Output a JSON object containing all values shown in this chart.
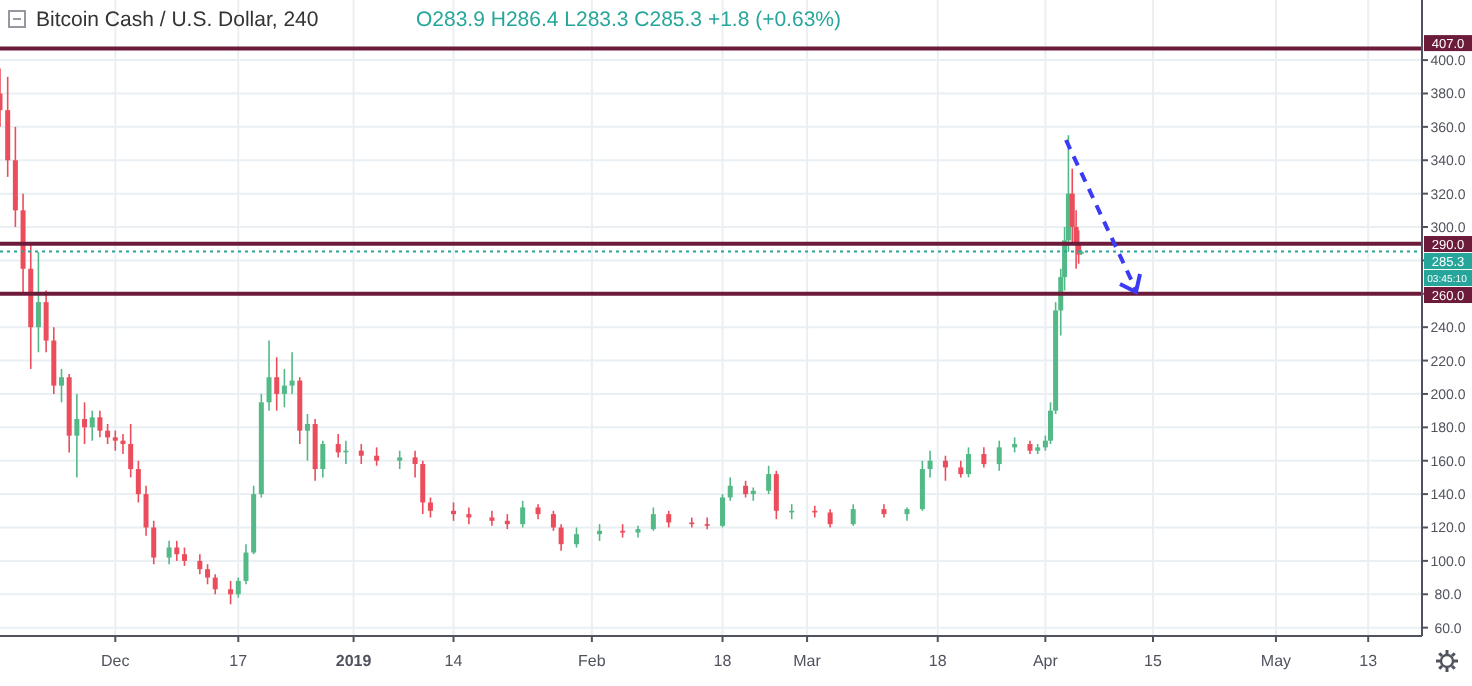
{
  "chart_data": {
    "type": "candlestick",
    "title": "Bitcoin Cash / U.S. Dollar, 240",
    "annotations": [
      "O283.9 H286.4 L283.3 C285.3 +1.8 (+0.63%)",
      "03:45:10"
    ],
    "colors": [
      "#eb4d5c",
      "#eb4d5c",
      "#eb4d5c",
      "#eb4d5c",
      "#eb4d5c",
      "#53b987",
      "#eb4d5c",
      "#eb4d5c",
      "#53b987",
      "#eb4d5c",
      "#53b987",
      "#eb4d5c",
      "#53b987",
      "#eb4d5c",
      "#eb4d5c",
      "#eb4d5c",
      "#eb4d5c",
      "#eb4d5c",
      "#eb4d5c",
      "#eb4d5c",
      "#eb4d5c",
      "#53b987",
      "#eb4d5c",
      "#eb4d5c",
      "#eb4d5c",
      "#eb4d5c",
      "#eb4d5c",
      "#eb4d5c",
      "#53b987",
      "#53b987",
      "#53b987",
      "#53b987",
      "#53b987",
      "#eb4d5c",
      "#53b987",
      "#53b987",
      "#eb4d5c",
      "#53b987",
      "#eb4d5c",
      "#53b987",
      "#eb4d5c",
      "#53b987",
      "#eb4d5c",
      "#eb4d5c",
      "#53b987",
      "#eb4d5c",
      "#eb4d5c",
      "#eb4d5c",
      "#eb4d5c",
      "#eb4d5c",
      "#eb4d5c",
      "#eb4d5c",
      "#53b987",
      "#eb4d5c",
      "#eb4d5c",
      "#eb4d5c",
      "#53b987",
      "#53b987",
      "#eb4d5c",
      "#53b987",
      "#53b987",
      "#eb4d5c",
      "#eb4d5c",
      "#eb4d5c",
      "#53b987",
      "#53b987",
      "#eb4d5c",
      "#53b987",
      "#53b987",
      "#eb4d5c",
      "#53b987",
      "#eb4d5c",
      "#eb4d5c",
      "#53b987",
      "#eb4d5c",
      "#53b987",
      "#53b987",
      "#53b987",
      "#eb4d5c",
      "#eb4d5c",
      "#53b987",
      "#eb4d5c",
      "#53b987",
      "#53b987",
      "#eb4d5c",
      "#53b987",
      "#53b987",
      "#53b987",
      "#53b987",
      "#53b987",
      "#53b987",
      "#53b987",
      "#eb4d5c",
      "#eb4d5c",
      "#eb4d5c",
      "#53b987"
    ],
    "x": [
      "2018-11-16",
      "2018-11-17",
      "2018-11-18",
      "2018-11-19",
      "2018-11-20",
      "2018-11-21",
      "2018-11-22",
      "2018-11-23",
      "2018-11-24",
      "2018-11-25",
      "2018-11-26",
      "2018-11-27",
      "2018-11-28",
      "2018-11-29",
      "2018-11-30",
      "2018-12-01",
      "2018-12-02",
      "2018-12-03",
      "2018-12-04",
      "2018-12-05",
      "2018-12-06",
      "2018-12-08",
      "2018-12-09",
      "2018-12-10",
      "2018-12-12",
      "2018-12-13",
      "2018-12-14",
      "2018-12-16",
      "2018-12-17",
      "2018-12-18",
      "2018-12-19",
      "2018-12-20",
      "2018-12-21",
      "2018-12-22",
      "2018-12-23",
      "2018-12-24",
      "2018-12-25",
      "2018-12-26",
      "2018-12-27",
      "2018-12-28",
      "2018-12-30",
      "2018-12-31",
      "2019-01-02",
      "2019-01-04",
      "2019-01-07",
      "2019-01-09",
      "2019-01-10",
      "2019-01-11",
      "2019-01-14",
      "2019-01-16",
      "2019-01-19",
      "2019-01-21",
      "2019-01-23",
      "2019-01-25",
      "2019-01-27",
      "2019-01-28",
      "2019-01-30",
      "2019-02-02",
      "2019-02-05",
      "2019-02-07",
      "2019-02-09",
      "2019-02-11",
      "2019-02-14",
      "2019-02-16",
      "2019-02-18",
      "2019-02-19",
      "2019-02-21",
      "2019-02-22",
      "2019-02-24",
      "2019-02-25",
      "2019-02-27",
      "2019-03-02",
      "2019-03-04",
      "2019-03-07",
      "2019-03-11",
      "2019-03-14",
      "2019-03-16",
      "2019-03-17",
      "2019-03-19",
      "2019-03-21",
      "2019-03-22",
      "2019-03-24",
      "2019-03-26",
      "2019-03-28",
      "2019-03-30",
      "2019-03-31",
      "2019-04-01T00:00",
      "2019-04-01T16:00",
      "2019-04-02T08:00",
      "2019-04-03T00:00",
      "2019-04-03T12:00",
      "2019-04-04T00:00",
      "2019-04-04T12:00",
      "2019-04-05T00:00",
      "2019-04-05T08:00",
      "2019-04-05T16:00"
    ],
    "ohlc": [
      [
        380,
        395,
        360,
        370
      ],
      [
        370,
        390,
        330,
        340
      ],
      [
        340,
        360,
        300,
        310
      ],
      [
        310,
        320,
        260,
        275
      ],
      [
        275,
        290,
        215,
        240
      ],
      [
        240,
        285,
        225,
        255
      ],
      [
        255,
        262,
        225,
        232
      ],
      [
        232,
        240,
        200,
        205
      ],
      [
        205,
        215,
        195,
        210
      ],
      [
        210,
        212,
        165,
        175
      ],
      [
        175,
        200,
        150,
        185
      ],
      [
        185,
        195,
        170,
        180
      ],
      [
        180,
        190,
        172,
        186
      ],
      [
        186,
        190,
        174,
        178
      ],
      [
        178,
        182,
        170,
        174
      ],
      [
        174,
        178,
        166,
        172
      ],
      [
        172,
        176,
        164,
        170
      ],
      [
        170,
        182,
        150,
        155
      ],
      [
        155,
        160,
        135,
        140
      ],
      [
        140,
        145,
        115,
        120
      ],
      [
        120,
        124,
        98,
        102
      ],
      [
        102,
        112,
        98,
        108
      ],
      [
        108,
        112,
        100,
        104
      ],
      [
        104,
        108,
        97,
        100
      ],
      [
        100,
        104,
        92,
        95
      ],
      [
        95,
        98,
        86,
        90
      ],
      [
        90,
        92,
        80,
        83
      ],
      [
        83,
        88,
        74,
        80
      ],
      [
        80,
        90,
        78,
        88
      ],
      [
        88,
        110,
        86,
        105
      ],
      [
        105,
        145,
        104,
        140
      ],
      [
        140,
        200,
        138,
        195
      ],
      [
        195,
        232,
        190,
        210
      ],
      [
        210,
        222,
        190,
        200
      ],
      [
        200,
        215,
        192,
        205
      ],
      [
        205,
        225,
        200,
        208
      ],
      [
        208,
        210,
        170,
        178
      ],
      [
        178,
        188,
        160,
        182
      ],
      [
        182,
        185,
        148,
        155
      ],
      [
        155,
        172,
        150,
        170
      ],
      [
        170,
        176,
        162,
        165
      ],
      [
        165,
        172,
        158,
        166
      ],
      [
        166,
        170,
        158,
        163
      ],
      [
        163,
        168,
        157,
        160
      ],
      [
        160,
        166,
        155,
        162
      ],
      [
        162,
        166,
        150,
        158
      ],
      [
        158,
        160,
        128,
        135
      ],
      [
        135,
        138,
        126,
        130
      ],
      [
        130,
        135,
        124,
        128
      ],
      [
        128,
        132,
        122,
        126
      ],
      [
        126,
        130,
        121,
        124
      ],
      [
        124,
        128,
        119,
        122
      ],
      [
        122,
        136,
        120,
        132
      ],
      [
        132,
        134,
        125,
        128
      ],
      [
        128,
        130,
        118,
        120
      ],
      [
        120,
        122,
        106,
        110
      ],
      [
        110,
        120,
        108,
        116
      ],
      [
        116,
        122,
        112,
        118
      ],
      [
        118,
        122,
        114,
        117
      ],
      [
        117,
        121,
        114,
        119
      ],
      [
        119,
        132,
        118,
        128
      ],
      [
        128,
        130,
        120,
        123
      ],
      [
        123,
        126,
        120,
        122
      ],
      [
        122,
        126,
        119,
        121
      ],
      [
        121,
        140,
        120,
        138
      ],
      [
        138,
        150,
        136,
        145
      ],
      [
        145,
        148,
        138,
        140
      ],
      [
        140,
        144,
        136,
        142
      ],
      [
        142,
        157,
        140,
        152
      ],
      [
        152,
        154,
        125,
        130
      ],
      [
        130,
        134,
        125,
        130
      ],
      [
        130,
        133,
        126,
        129
      ],
      [
        129,
        131,
        120,
        122
      ],
      [
        122,
        134,
        121,
        131
      ],
      [
        131,
        134,
        126,
        128
      ],
      [
        128,
        132,
        124,
        131
      ],
      [
        131,
        160,
        130,
        155
      ],
      [
        155,
        166,
        150,
        160
      ],
      [
        160,
        163,
        148,
        156
      ],
      [
        156,
        160,
        150,
        152
      ],
      [
        152,
        168,
        150,
        164
      ],
      [
        164,
        168,
        156,
        158
      ],
      [
        158,
        172,
        154,
        168
      ],
      [
        168,
        174,
        165,
        170
      ],
      [
        170,
        172,
        164,
        166
      ],
      [
        166,
        170,
        164,
        168
      ],
      [
        168,
        175,
        166,
        172
      ],
      [
        172,
        195,
        170,
        190
      ],
      [
        190,
        255,
        188,
        250
      ],
      [
        250,
        275,
        235,
        270
      ],
      [
        270,
        300,
        262,
        292
      ],
      [
        292,
        355,
        285,
        320
      ],
      [
        320,
        335,
        290,
        300
      ],
      [
        300,
        310,
        275,
        290
      ],
      [
        290,
        298,
        278,
        283.5
      ],
      [
        283.9,
        286.4,
        283.3,
        285.3
      ]
    ],
    "xlim": [
      "2018-11-16",
      "2019-05-20"
    ],
    "xticks": [
      {
        "value": "2018-12-01",
        "label": "Dec"
      },
      {
        "value": "2018-12-17",
        "label": "17"
      },
      {
        "value": "2019-01-01",
        "label": "2019"
      },
      {
        "value": "2019-01-14",
        "label": "14"
      },
      {
        "value": "2019-02-01",
        "label": "Feb"
      },
      {
        "value": "2019-02-18",
        "label": "18"
      },
      {
        "value": "2019-03-01",
        "label": "Mar"
      },
      {
        "value": "2019-03-18",
        "label": "18"
      },
      {
        "value": "2019-04-01",
        "label": "Apr"
      },
      {
        "value": "2019-04-15",
        "label": "15"
      },
      {
        "value": "2019-05-01",
        "label": "May"
      },
      {
        "value": "2019-05-13",
        "label": "13"
      }
    ],
    "ylim": [
      55,
      436
    ],
    "yticks": [
      {
        "value": 60,
        "label": "60.0"
      },
      {
        "value": 80,
        "label": "80.0"
      },
      {
        "value": 100,
        "label": "100.0"
      },
      {
        "value": 120,
        "label": "120.0"
      },
      {
        "value": 140,
        "label": "140.0"
      },
      {
        "value": 160,
        "label": "160.0"
      },
      {
        "value": 180,
        "label": "180.0"
      },
      {
        "value": 200,
        "label": "200.0"
      },
      {
        "value": 220,
        "label": "220.0"
      },
      {
        "value": 240,
        "label": "240.0"
      },
      {
        "value": 260,
        "label": null
      },
      {
        "value": 280,
        "label": null
      },
      {
        "value": 300,
        "label": "300.0"
      },
      {
        "value": 320,
        "label": "320.0"
      },
      {
        "value": 340,
        "label": "340.0"
      },
      {
        "value": 360,
        "label": "360.0"
      },
      {
        "value": 380,
        "label": "380.0"
      },
      {
        "value": 400,
        "label": "400.0"
      }
    ],
    "grid": true,
    "ref_lines": [
      {
        "axis": "y",
        "value": 407,
        "label": "407.0",
        "color": "#6d1b3b",
        "line_style": "solid"
      },
      {
        "axis": "y",
        "value": 290,
        "label": "290.0",
        "color": "#6d1b3b",
        "line_style": "solid"
      },
      {
        "axis": "y",
        "value": 260,
        "label": "260.0",
        "color": "#6d1b3b",
        "line_style": "solid"
      },
      {
        "axis": "y",
        "value": 285.3,
        "label": "285.3",
        "color": "#26a69a",
        "line_style": "dotted"
      }
    ]
  }
}
